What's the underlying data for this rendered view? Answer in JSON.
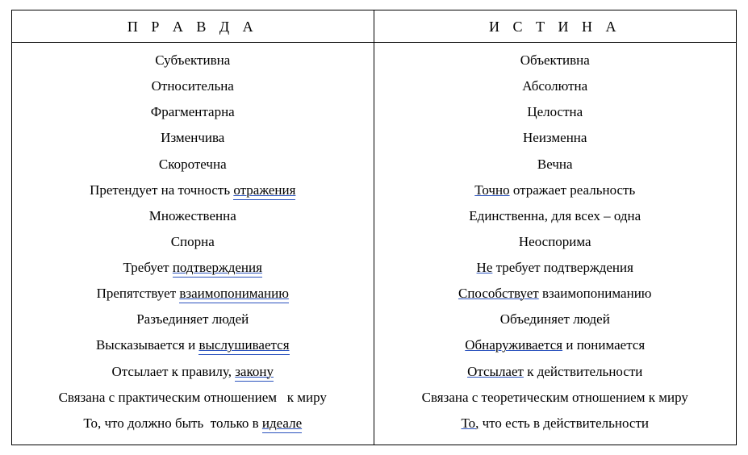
{
  "table": {
    "border_color": "#000000",
    "underline_color": "#2a52be",
    "font_family": "Georgia, 'Times New Roman', serif",
    "header_fontsize": 18,
    "header_letter_spacing": 6,
    "cell_fontsize": 17,
    "columns": [
      {
        "header": "П Р А В Д А"
      },
      {
        "header": "И С Т И Н А"
      }
    ],
    "rows": [
      {
        "left": [
          {
            "text": "Субъективна"
          }
        ],
        "right": [
          {
            "text": "Объективна"
          }
        ]
      },
      {
        "left": [
          {
            "text": "Относительна"
          }
        ],
        "right": [
          {
            "text": "Абсолютна"
          }
        ]
      },
      {
        "left": [
          {
            "text": "Фрагментарна"
          }
        ],
        "right": [
          {
            "text": "Целостна"
          }
        ]
      },
      {
        "left": [
          {
            "text": "Изменчива"
          }
        ],
        "right": [
          {
            "text": "Неизменна"
          }
        ]
      },
      {
        "left": [
          {
            "text": "Скоротечна"
          }
        ],
        "right": [
          {
            "text": "Вечна"
          }
        ]
      },
      {
        "left": [
          {
            "text": "Претендует на точность "
          },
          {
            "text": "отражения",
            "underline": "double"
          }
        ],
        "right": [
          {
            "text": "Точно",
            "underline": "single"
          },
          {
            "text": " отражает реальность"
          }
        ]
      },
      {
        "left": [
          {
            "text": "Множественна"
          }
        ],
        "right": [
          {
            "text": "Единственна, для всех – одна"
          }
        ]
      },
      {
        "left": [
          {
            "text": "Спорна"
          }
        ],
        "right": [
          {
            "text": "Неоспорима"
          }
        ]
      },
      {
        "left": [
          {
            "text": "Требует "
          },
          {
            "text": "подтверждения",
            "underline": "double"
          }
        ],
        "right": [
          {
            "text": "Не",
            "underline": "single"
          },
          {
            "text": " требует подтверждения"
          }
        ]
      },
      {
        "left": [
          {
            "text": "Препятствует "
          },
          {
            "text": "взаимопониманию",
            "underline": "double"
          }
        ],
        "right": [
          {
            "text": "Способствует",
            "underline": "single"
          },
          {
            "text": " взаимопониманию"
          }
        ]
      },
      {
        "left": [
          {
            "text": "Разъединяет людей"
          }
        ],
        "right": [
          {
            "text": "Объединяет людей"
          }
        ]
      },
      {
        "left": [
          {
            "text": "Высказывается и "
          },
          {
            "text": "выслушивается",
            "underline": "double"
          }
        ],
        "right": [
          {
            "text": "Обнаруживается",
            "underline": "single"
          },
          {
            "text": " и понимается"
          }
        ]
      },
      {
        "left": [
          {
            "text": "Отсылает к правилу, "
          },
          {
            "text": "закону",
            "underline": "double"
          }
        ],
        "right": [
          {
            "text": "Отсылает",
            "underline": "single"
          },
          {
            "text": " к действительности"
          }
        ]
      },
      {
        "left": [
          {
            "text": "Связана с практическим отношением   к миру"
          }
        ],
        "right": [
          {
            "text": "Связана с теоретическим отношением к миру"
          }
        ]
      },
      {
        "left": [
          {
            "text": "То, что должно быть  только в "
          },
          {
            "text": "идеале",
            "underline": "double"
          }
        ],
        "right": [
          {
            "text": "То,",
            "underline": "single"
          },
          {
            "text": " что есть в действительности"
          }
        ]
      }
    ]
  }
}
